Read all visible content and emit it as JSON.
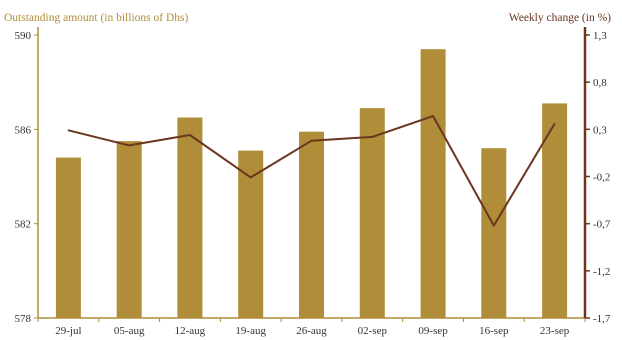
{
  "chart_data": {
    "type": "bar",
    "categories": [
      "29-jul",
      "05-aug",
      "12-aug",
      "19-aug",
      "26-aug",
      "02-sep",
      "09-sep",
      "16-sep",
      "23-sep"
    ],
    "series": [
      {
        "type": "bar",
        "axis": "left",
        "values": [
          584.8,
          585.5,
          586.5,
          585.1,
          585.9,
          586.9,
          589.4,
          585.2,
          587.1
        ],
        "color": "#b08d38"
      },
      {
        "type": "line",
        "axis": "right",
        "values": [
          0.29,
          0.13,
          0.24,
          -0.21,
          0.18,
          0.22,
          0.44,
          -0.72,
          0.36
        ],
        "color": "#6b3520"
      }
    ],
    "left_axis": {
      "label": "Outstanding amount (in billions of Dhs)",
      "ylim": [
        578,
        590
      ],
      "ticks": [
        578,
        582,
        586,
        590
      ],
      "tick_labels": [
        "578",
        "582",
        "586",
        "590"
      ],
      "color": "#b08d38"
    },
    "right_axis": {
      "label": "Weekly change (in %)",
      "ylim": [
        -1.7,
        1.3
      ],
      "ticks": [
        1.3,
        0.8,
        0.3,
        -0.2,
        -0.7,
        -1.2,
        -1.7
      ],
      "tick_labels": [
        "1,3",
        "0,8",
        "0,3",
        "-0,2",
        "-0,7",
        "-1,2",
        "-1,7"
      ],
      "color": "#6b3520"
    },
    "grid": false,
    "legend": "none"
  }
}
